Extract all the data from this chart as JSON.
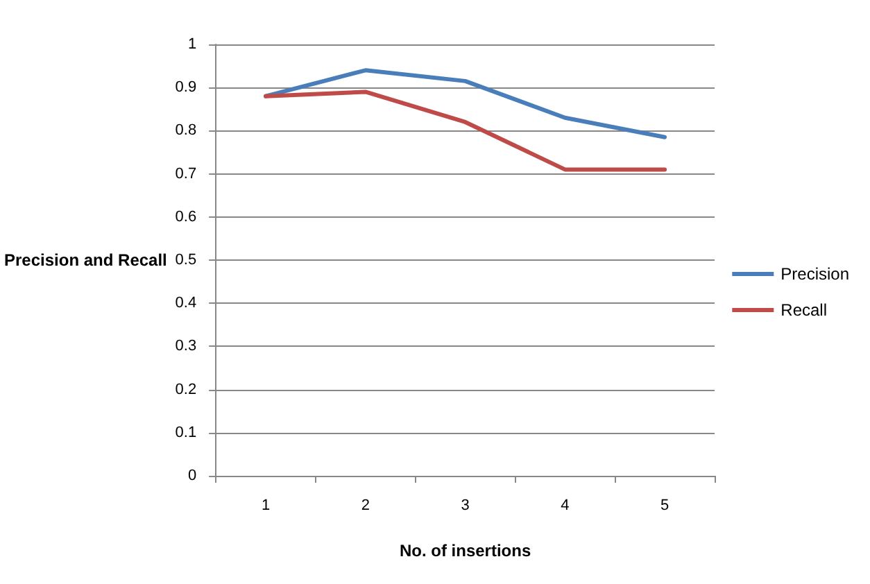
{
  "chart_data": {
    "type": "line",
    "xlabel": "No. of insertions",
    "ylabel": "Precision and Recall",
    "categories": [
      "1",
      "2",
      "3",
      "4",
      "5"
    ],
    "series": [
      {
        "name": "Precision",
        "color": "#4a7ebb",
        "values": [
          0.88,
          0.94,
          0.915,
          0.83,
          0.785
        ]
      },
      {
        "name": "Recall",
        "color": "#be4b48",
        "values": [
          0.88,
          0.89,
          0.82,
          0.71,
          0.71
        ]
      }
    ],
    "ylim": [
      0,
      1
    ],
    "yticks": [
      0,
      0.1,
      0.2,
      0.3,
      0.4,
      0.5,
      0.6,
      0.7,
      0.8,
      0.9,
      1
    ],
    "grid": "y",
    "legend": "right",
    "marker": "none",
    "line_style": "solid"
  }
}
